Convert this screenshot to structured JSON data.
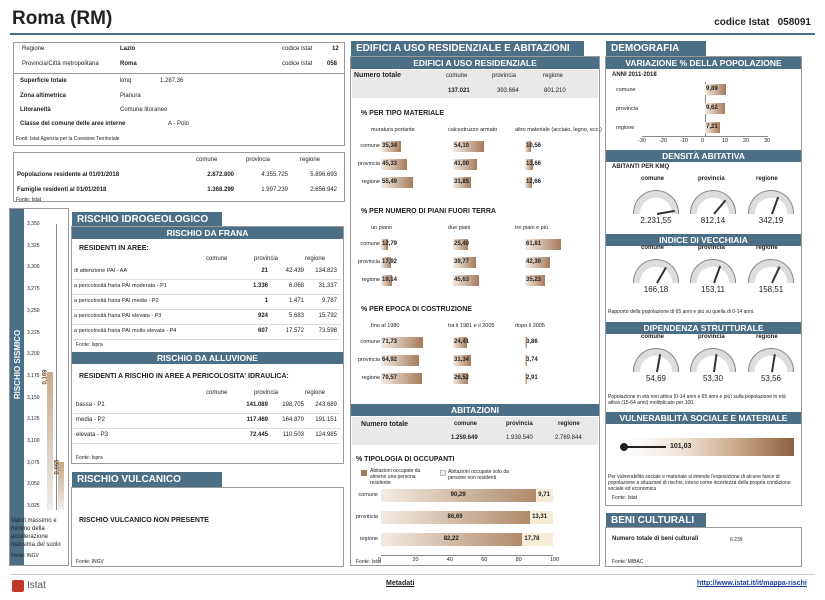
{
  "title": "Roma (RM)",
  "codice_istat_label": "codice Istat",
  "codice_istat": "058091",
  "info": {
    "regione_label": "Regione",
    "regione": "Lazio",
    "codice_label": "codice Istat",
    "codice_reg": "12",
    "prov_label": "Provincia/Città metropolitana",
    "prov": "Roma",
    "codice_prov": "058",
    "superficie_label": "Superficie totale",
    "superficie_unit": "kmq",
    "superficie": "1.287,36",
    "zona_label": "Zona altimetrica",
    "zona": "Pianura",
    "litor_label": "Litoraneità",
    "litor": "Comune litoraneo",
    "classe_label": "Classe del comune delle aree interne",
    "classe": "A - Polo",
    "fonte": "Fonti: Istat Agenzia per la Coesione Territoriale"
  },
  "pop": {
    "cols": [
      "comune",
      "provincia",
      "regione"
    ],
    "pop_label": "Popolazione residente al 01/01/2018",
    "pop": [
      "2.872.800",
      "4.355.725",
      "5.896.693"
    ],
    "fam_label": "Famiglie residenti al 01/01/2018",
    "fam": [
      "1.368.299",
      "1.997.239",
      "2.656.942"
    ],
    "fonte": "Fonte: Istat"
  },
  "sismico": {
    "title": "RISCHIO SISMICO",
    "ticks": [
      "3,350",
      "3,325",
      "3,300",
      "3,275",
      "3,250",
      "3,225",
      "3,200",
      "3,175",
      "3,150",
      "3,125",
      "3,100",
      "3,075",
      "3,050",
      "3,025"
    ],
    "val1": "0,169",
    "val2": "0,065",
    "note": "Valori massimo e minimo della accelerazione massima del suolo",
    "fonte": "Fonte: INGV"
  },
  "idro": {
    "title": "RISCHIO IDROGEOLOGICO",
    "frana_title": "RISCHIO DA FRANA",
    "frana_head": "RESIDENTI IN AREE:",
    "cols": [
      "comune",
      "provincia",
      "regione"
    ],
    "frana_rows": [
      {
        "l": "di attenzione PAI - AA",
        "v": [
          "21",
          "42.439",
          "134.823"
        ]
      },
      {
        "l": "a pericolosità frana PAI moderata - P1",
        "v": [
          "1.336",
          "6.068",
          "31.337"
        ]
      },
      {
        "l": "a pericolosità frana PAI media - P2",
        "v": [
          "1",
          "1.471",
          "9.787"
        ]
      },
      {
        "l": "a pericolosità frana PAI elevata - P3",
        "v": [
          "924",
          "5.683",
          "15.792"
        ]
      },
      {
        "l": "a pericolosità frana PAI molto elevata - P4",
        "v": [
          "607",
          "17.572",
          "73.598"
        ]
      }
    ],
    "fonte1": "Fonte: Ispra",
    "all_title": "RISCHIO DA ALLUVIONE",
    "all_head": "RESIDENTI A RISCHIO IN AREE A PERICOLOSITA' IDRAULICA:",
    "all_rows": [
      {
        "l": "bassa - P1",
        "v": [
          "141.089",
          "198.705",
          "243.689"
        ]
      },
      {
        "l": "media - P2",
        "v": [
          "117.469",
          "164.870",
          "191.151"
        ]
      },
      {
        "l": "elevata - P3",
        "v": [
          "72.445",
          "110.503",
          "124.985"
        ]
      }
    ],
    "fonte2": "Fonte: Ispra"
  },
  "vulc": {
    "title": "RISCHIO VULCANICO",
    "text": "RISCHIO VULCANICO NON PRESENTE",
    "fonte": "Fonte: INGV"
  },
  "edifici": {
    "title": "EDIFICI A USO RESIDENZIALE E ABITAZIONI",
    "sub1": "EDIFICI A USO RESIDENZIALE",
    "num_label": "Numero totale",
    "cols": [
      "comune",
      "provincia",
      "regione"
    ],
    "num": [
      "137.021",
      "393.664",
      "801.210"
    ],
    "mat_title": "% PER TIPO MATERIALE",
    "mat_cols": [
      "muratura portante",
      "calcestruzzo armato",
      "altro materiale (acciaio, legno, ecc.)"
    ],
    "mat": [
      [
        "35,34",
        "54,10",
        "10,56"
      ],
      [
        "45,33",
        "41,00",
        "13,66"
      ],
      [
        "55,49",
        "31,85",
        "12,66"
      ]
    ],
    "piani_title": "% PER NUMERO DI PIANI FUORI TERRA",
    "piani_cols": [
      "un piano",
      "due piani",
      "tre piani e più"
    ],
    "piani": [
      [
        "12,79",
        "25,40",
        "61,81"
      ],
      [
        "17,92",
        "39,77",
        "42,30"
      ],
      [
        "19,14",
        "45,63",
        "35,23"
      ]
    ],
    "epoca_title": "% PER EPOCA DI COSTRUZIONE",
    "epoca_cols": [
      "fino al 1980",
      "tra il 1981 e il 2005",
      "dopo il 2005"
    ],
    "epoca": [
      [
        "71,73",
        "24,41",
        "3,86"
      ],
      [
        "64,92",
        "31,34",
        "3,74"
      ],
      [
        "70,57",
        "26,52",
        "2,91"
      ]
    ],
    "row_labels": [
      "comune",
      "provincia",
      "regione"
    ],
    "sub2": "ABITAZIONI",
    "ab_num": [
      "1.259.649",
      "1.939.540",
      "2.769.844"
    ],
    "occ_title": "% TIPOLOGIA DI OCCUPANTI",
    "occ_leg1": "Abitazioni occupate da almeno una persona residente",
    "occ_leg2": "Abitazioni occupate solo da persone non residenti",
    "occ": [
      [
        "90,29",
        "9,71"
      ],
      [
        "86,69",
        "13,31"
      ],
      [
        "82,22",
        "17,78"
      ]
    ],
    "occ_ticks": [
      "0",
      "20",
      "40",
      "60",
      "80",
      "100"
    ],
    "fonte": "Fonte: Istat"
  },
  "demo": {
    "title": "DEMOGRAFIA",
    "var_title": "VARIAZIONE % DELLA POPOLAZIONE",
    "var_period": "ANNI 2011-2018",
    "var_rows": [
      {
        "l": "comune",
        "v": "9,89"
      },
      {
        "l": "provincia",
        "v": "9,62"
      },
      {
        "l": "regione",
        "v": "7,21"
      }
    ],
    "var_ticks": [
      "-30",
      "-20",
      "-10",
      "0",
      "10",
      "20",
      "30"
    ],
    "dens_title": "DENSITÀ ABITATIVA",
    "dens_sub": "ABITANTI PER KMQ",
    "cols": [
      "comune",
      "provincia",
      "regione"
    ],
    "dens_vals": [
      "2.231,55",
      "812,14",
      "342,19"
    ],
    "vecc_title": "INDICE DI VECCHIAIA",
    "vecc_vals": [
      "166,18",
      "153,11",
      "158,51"
    ],
    "vecc_note": "Rapporto della popolazione di 65 anni e più su quella di 0-14 anni.",
    "dip_title": "DIPENDENZA STRUTTURALE",
    "dip_vals": [
      "54,69",
      "53,30",
      "53,56"
    ],
    "dip_note": "Popolazione in età non attiva (0-14 anni e 65 anni e più) sulla popolazione in età attiva (15-64 anni) moltiplicato per 100.",
    "vuln_title": "VULNERABILITÀ SOCIALE E MATERIALE",
    "vuln_val": "101,03",
    "vuln_note": "Per vulnerabilità sociale e materiale si intende l'esposizione di alcune fasce di popolazione a situazioni di rischio, inteso come incertezza della propria condizione sociale ed economica",
    "fonte": "Fonte: Istat"
  },
  "beni": {
    "title": "BENI CULTURALI",
    "label": "Numero totale di beni culturali",
    "val": "6.239",
    "fonte": "Fonte: MIBAC"
  },
  "footer": {
    "logo": "Istat",
    "meta": "Metadati",
    "url": "http://www.istat.it/it/mappa-rischi"
  }
}
